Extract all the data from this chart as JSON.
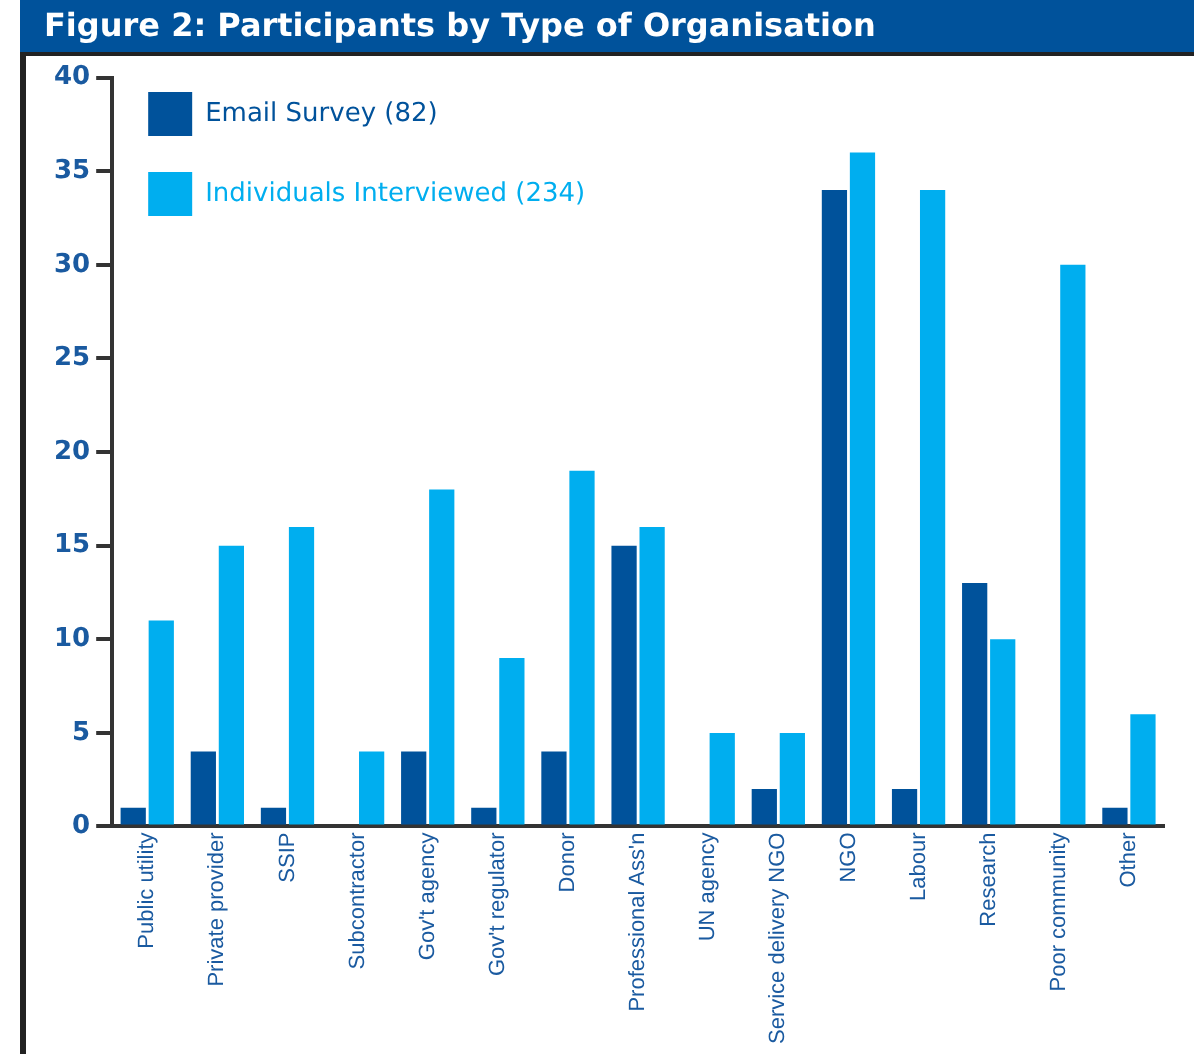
{
  "chart_data": {
    "type": "bar",
    "title": "Figure 2: Participants by Type of Organisation",
    "categories": [
      "Public utility",
      "Private provider",
      "SSIP",
      "Subcontractor",
      "Gov't agency",
      "Gov't regulator",
      "Donor",
      "Professional Ass'n",
      "UN agency",
      "Service delivery NGO",
      "NGO",
      "Labour",
      "Research",
      "Poor community",
      "Other"
    ],
    "series": [
      {
        "name": "Email Survey (82)",
        "color": "#00529b",
        "values": [
          1,
          4,
          1,
          0,
          4,
          1,
          4,
          15,
          0,
          2,
          34,
          2,
          13,
          0,
          1
        ]
      },
      {
        "name": "Individuals Interviewed (234)",
        "color": "#00aeef",
        "values": [
          11,
          15,
          16,
          4,
          18,
          9,
          19,
          16,
          5,
          5,
          36,
          34,
          10,
          30,
          6
        ]
      }
    ],
    "ylim": [
      0,
      40
    ],
    "yticks": [
      0,
      5,
      10,
      15,
      20,
      25,
      30,
      35,
      40
    ],
    "grid": false,
    "legend": "top left"
  }
}
